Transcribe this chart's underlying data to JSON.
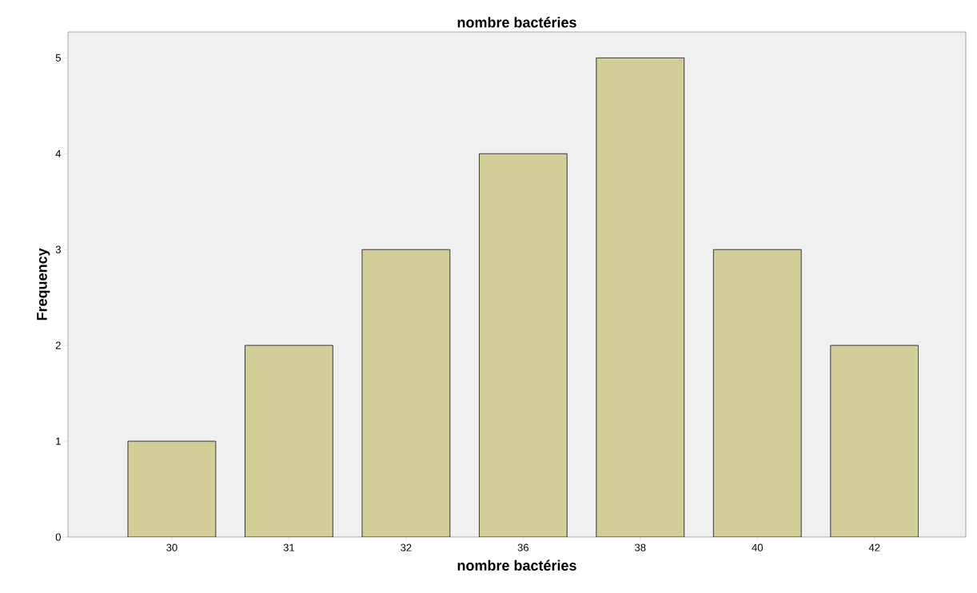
{
  "chart_data": {
    "type": "bar",
    "title": "nombre  bactéries",
    "xlabel": "nombre  bactéries",
    "ylabel": "Frequency",
    "categories": [
      "30",
      "31",
      "32",
      "36",
      "38",
      "40",
      "42"
    ],
    "values": [
      1,
      2,
      3,
      4,
      5,
      3,
      2
    ],
    "color": "#d3ce97",
    "ylim": [
      0,
      5.27
    ],
    "yticks": [
      0,
      1,
      2,
      3,
      4,
      5
    ]
  }
}
